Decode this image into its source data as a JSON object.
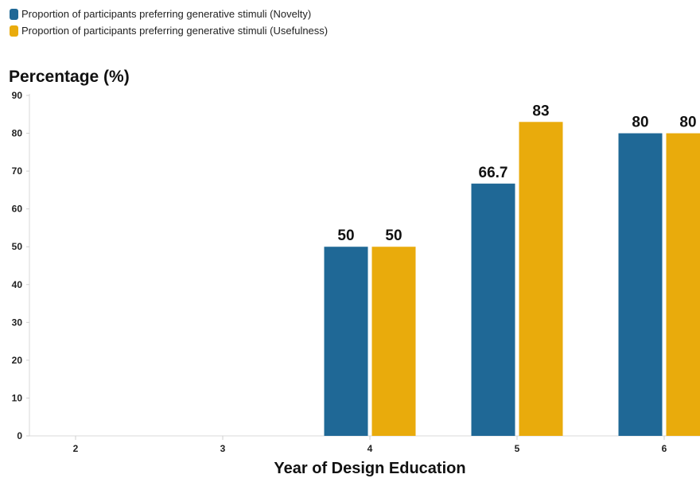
{
  "legend": [
    {
      "label": "Proportion of participants preferring generative stimuli (Novelty)",
      "color": "#1f6896"
    },
    {
      "label": "Proportion of participants preferring generative stimuli (Usefulness)",
      "color": "#e9ab0c"
    }
  ],
  "chart_data": {
    "type": "bar",
    "title": "",
    "ylabel": "Percentage (%)",
    "xlabel": "Year of Design Education",
    "categories": [
      "2",
      "3",
      "4",
      "5",
      "6"
    ],
    "ylim": [
      0,
      90
    ],
    "yticks": [
      0,
      10,
      20,
      30,
      40,
      50,
      60,
      70,
      80,
      90
    ],
    "grid": false,
    "legend_position": "top-left",
    "series": [
      {
        "name": "Proportion of participants preferring generative stimuli (Novelty)",
        "color": "#1f6896",
        "values": [
          null,
          null,
          50,
          66.7,
          80
        ],
        "labels": [
          "",
          "",
          "50",
          "66.7",
          "80"
        ]
      },
      {
        "name": "Proportion of participants preferring generative stimuli (Usefulness)",
        "color": "#e9ab0c",
        "values": [
          null,
          null,
          50,
          83,
          80
        ],
        "labels": [
          "",
          "",
          "50",
          "83",
          "80"
        ]
      }
    ]
  }
}
